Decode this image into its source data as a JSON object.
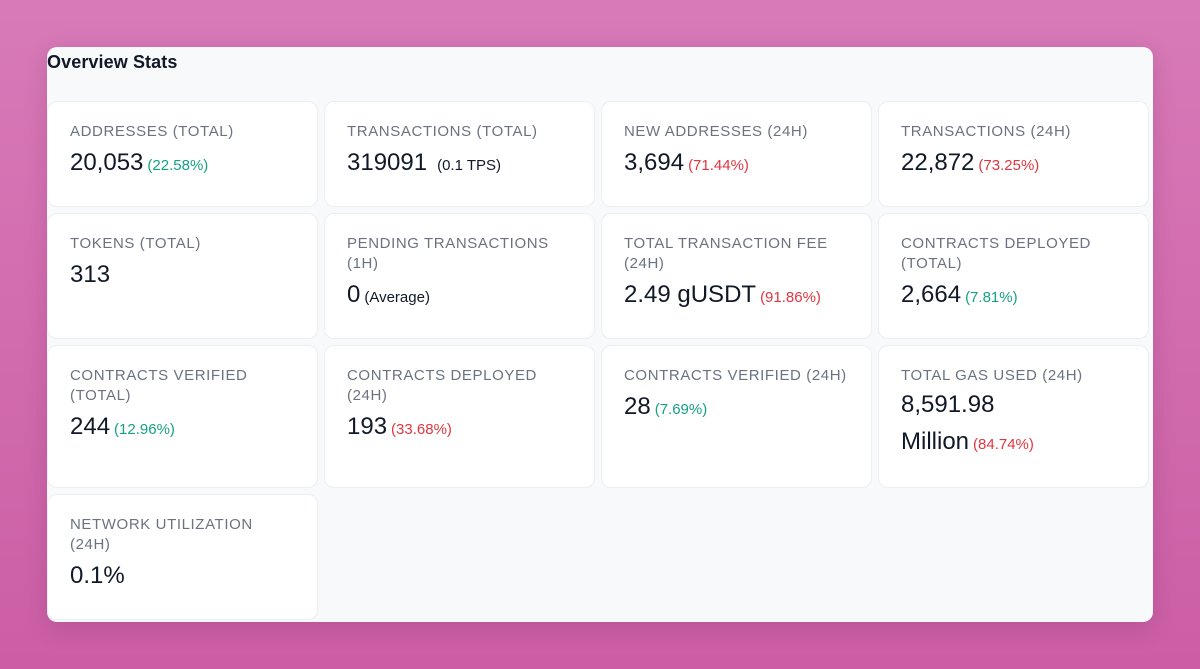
{
  "panel": {
    "title": "Overview Stats"
  },
  "colors": {
    "positive": "#16a085",
    "negative": "#e0363f",
    "label": "#6b7280",
    "value": "#111827"
  },
  "stats": [
    {
      "label": "ADDRESSES (TOTAL)",
      "value": "20,053",
      "change": "(22.58%)",
      "trend": "up"
    },
    {
      "label": "TRANSACTIONS (TOTAL)",
      "value": "319091",
      "note": "(0.1 TPS)"
    },
    {
      "label": "NEW ADDRESSES (24H)",
      "value": "3,694",
      "change": "(71.44%)",
      "trend": "down"
    },
    {
      "label": "TRANSACTIONS (24H)",
      "value": "22,872",
      "change": "(73.25%)",
      "trend": "down"
    },
    {
      "label": "TOKENS (TOTAL)",
      "value": "313"
    },
    {
      "label": "PENDING TRANSACTIONS (1H)",
      "value": "0",
      "note": "(Average)"
    },
    {
      "label": "TOTAL TRANSACTION FEE (24H)",
      "value": "2.49 gUSDT",
      "change": "(91.86%)",
      "trend": "down"
    },
    {
      "label": "CONTRACTS DEPLOYED (TOTAL)",
      "value": "2,664",
      "change": "(7.81%)",
      "trend": "up"
    },
    {
      "label": "CONTRACTS VERIFIED (TOTAL)",
      "value": "244",
      "change": "(12.96%)",
      "trend": "up"
    },
    {
      "label": "CONTRACTS DEPLOYED (24H)",
      "value": "193",
      "change": "(33.68%)",
      "trend": "down"
    },
    {
      "label": "CONTRACTS VERIFIED (24H)",
      "value": "28",
      "change": "(7.69%)",
      "trend": "up"
    },
    {
      "label": "TOTAL GAS USED (24H)",
      "value_line1": "8,591.98",
      "value_line2": "Million",
      "change": "(84.74%)",
      "trend": "down"
    },
    {
      "label": "NETWORK UTILIZATION (24H)",
      "value": "0.1%"
    }
  ]
}
